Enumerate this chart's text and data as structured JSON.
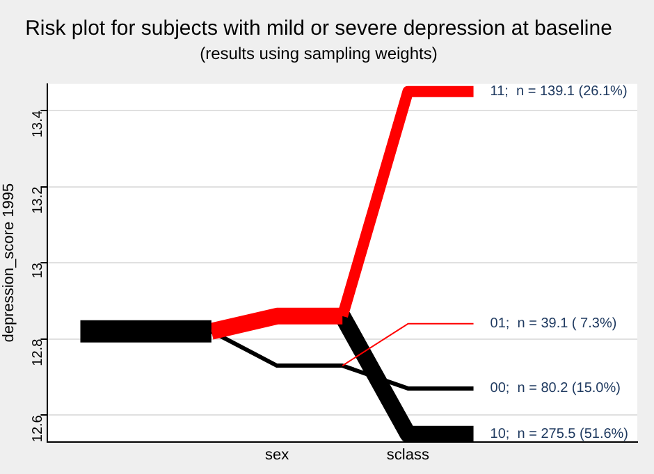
{
  "chart_data": {
    "type": "line",
    "title": "Risk plot for subjects with mild or severe depression at baseline",
    "subtitle": "(results using sampling weights)",
    "ylabel": "depression_score 1995",
    "categories": [
      null,
      null,
      null,
      "sex",
      null,
      "sclass",
      null,
      null,
      null
    ],
    "ylim": [
      12.53,
      13.47
    ],
    "yticks": [
      12.6,
      12.8,
      13,
      13.2,
      13.4
    ],
    "grid": "y",
    "legend": false,
    "marker": "none",
    "series": [
      {
        "color": "#000000",
        "values": [
          12.82,
          12.82,
          12.82,
          null,
          null,
          null,
          null,
          null,
          null
        ]
      },
      {
        "color": "#ff0000",
        "values": [
          null,
          null,
          12.82,
          12.86,
          12.86,
          null,
          null,
          null,
          null
        ]
      },
      {
        "color": "#ff0000",
        "values": [
          null,
          null,
          null,
          null,
          12.86,
          13.45,
          13.45,
          null,
          null
        ]
      },
      {
        "color": "#ff0000",
        "values": [
          null,
          null,
          null,
          null,
          12.73,
          12.84,
          12.84,
          null,
          null
        ]
      },
      {
        "color": "#000000",
        "values": [
          null,
          null,
          12.82,
          12.73,
          12.73,
          12.67,
          12.67,
          null,
          null
        ]
      },
      {
        "color": "#000000",
        "values": [
          null,
          null,
          null,
          null,
          12.86,
          12.55,
          12.55,
          null,
          null
        ]
      }
    ],
    "annotations": [
      "11;  n = 139.1 (26.1%)",
      "01;  n = 39.1 ( 7.3%)",
      "00;  n = 80.2 (15.0%)",
      "10;  n = 275.5 (51.6%)"
    ]
  }
}
